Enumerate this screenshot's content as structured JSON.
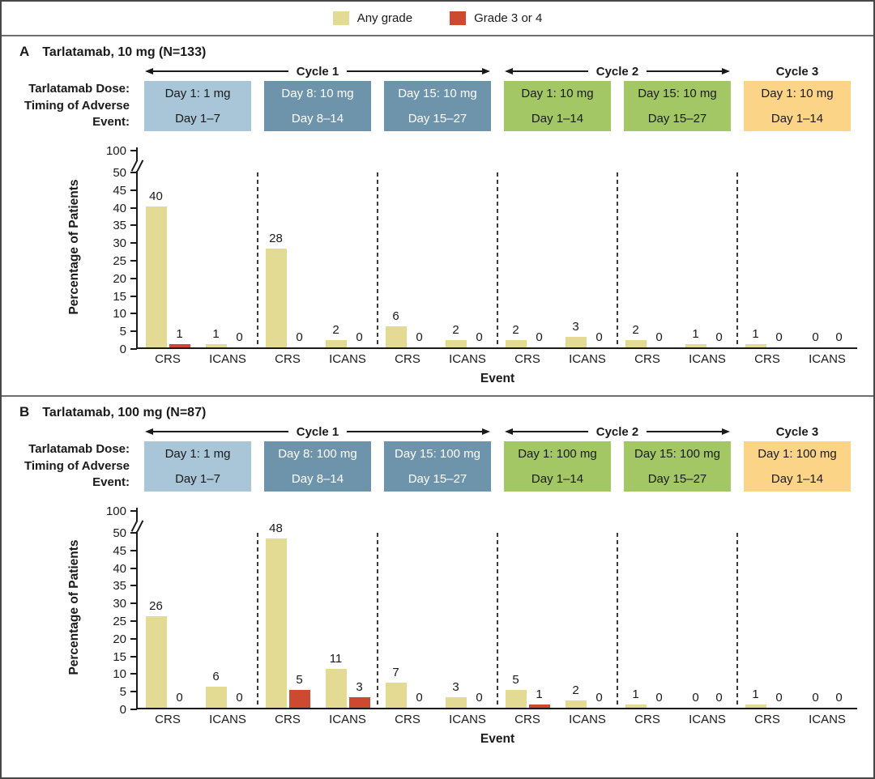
{
  "legend": {
    "any_grade": "Any grade",
    "grade_3_4": "Grade 3 or 4"
  },
  "colors": {
    "any_grade": "#e3db94",
    "grade_3_4": "#cd4a31",
    "lightblue": "#a9c6d8",
    "darkblue": "#6e94ab",
    "green": "#a4c765",
    "orange": "#fbd487",
    "axis": "#1a1a1a"
  },
  "header_labels": {
    "line1": "Tarlatamab Dose:",
    "line2": "Timing of Adverse",
    "line3": "Event:"
  },
  "axis": {
    "ylabel": "Percentage of Patients",
    "xlabel": "Event",
    "yticks": [
      0,
      5,
      10,
      15,
      20,
      25,
      30,
      35,
      40,
      45,
      50
    ],
    "ybreak_top_label": 100,
    "event_labels": [
      "CRS",
      "ICANS"
    ]
  },
  "chart_data": [
    {
      "type": "bar",
      "panel_letter": "A",
      "title": "Tarlatamab, 10 mg (N=133)",
      "ylabel": "Percentage of Patients",
      "xlabel": "Event",
      "ylim": [
        0,
        50
      ],
      "ybreak_to": 100,
      "legend_position": "top",
      "series_names": [
        "Any grade",
        "Grade 3 or 4"
      ],
      "cycles": [
        {
          "label": "Cycle 1",
          "span": 3,
          "arrows": true
        },
        {
          "label": "Cycle 2",
          "span": 2,
          "arrows": true
        },
        {
          "label": "Cycle 3",
          "span": 1,
          "arrows": false
        }
      ],
      "periods": [
        {
          "dose": "Day 1: 1 mg",
          "timing": "Day 1–7",
          "box_color": "lightblue",
          "events": [
            {
              "label": "CRS",
              "any_grade": 40,
              "grade_3_or_4": 1
            },
            {
              "label": "ICANS",
              "any_grade": 1,
              "grade_3_or_4": 0
            }
          ]
        },
        {
          "dose": "Day 8: 10 mg",
          "timing": "Day 8–14",
          "box_color": "darkblue",
          "events": [
            {
              "label": "CRS",
              "any_grade": 28,
              "grade_3_or_4": 0
            },
            {
              "label": "ICANS",
              "any_grade": 2,
              "grade_3_or_4": 0
            }
          ]
        },
        {
          "dose": "Day 15: 10 mg",
          "timing": "Day 15–27",
          "box_color": "darkblue",
          "events": [
            {
              "label": "CRS",
              "any_grade": 6,
              "grade_3_or_4": 0
            },
            {
              "label": "ICANS",
              "any_grade": 2,
              "grade_3_or_4": 0
            }
          ]
        },
        {
          "dose": "Day 1: 10 mg",
          "timing": "Day 1–14",
          "box_color": "green",
          "events": [
            {
              "label": "CRS",
              "any_grade": 2,
              "grade_3_or_4": 0
            },
            {
              "label": "ICANS",
              "any_grade": 3,
              "grade_3_or_4": 0
            }
          ]
        },
        {
          "dose": "Day 15: 10 mg",
          "timing": "Day 15–27",
          "box_color": "green",
          "events": [
            {
              "label": "CRS",
              "any_grade": 2,
              "grade_3_or_4": 0
            },
            {
              "label": "ICANS",
              "any_grade": 1,
              "grade_3_or_4": 0
            }
          ]
        },
        {
          "dose": "Day 1: 10 mg",
          "timing": "Day 1–14",
          "box_color": "orange",
          "events": [
            {
              "label": "CRS",
              "any_grade": 1,
              "grade_3_or_4": 0
            },
            {
              "label": "ICANS",
              "any_grade": 0,
              "grade_3_or_4": 0
            }
          ]
        }
      ]
    },
    {
      "type": "bar",
      "panel_letter": "B",
      "title": "Tarlatamab, 100 mg (N=87)",
      "ylabel": "Percentage of Patients",
      "xlabel": "Event",
      "ylim": [
        0,
        50
      ],
      "ybreak_to": 100,
      "legend_position": "top",
      "series_names": [
        "Any grade",
        "Grade 3 or 4"
      ],
      "cycles": [
        {
          "label": "Cycle 1",
          "span": 3,
          "arrows": true
        },
        {
          "label": "Cycle 2",
          "span": 2,
          "arrows": true
        },
        {
          "label": "Cycle 3",
          "span": 1,
          "arrows": false
        }
      ],
      "periods": [
        {
          "dose": "Day 1: 1 mg",
          "timing": "Day 1–7",
          "box_color": "lightblue",
          "events": [
            {
              "label": "CRS",
              "any_grade": 26,
              "grade_3_or_4": 0
            },
            {
              "label": "ICANS",
              "any_grade": 6,
              "grade_3_or_4": 0
            }
          ]
        },
        {
          "dose": "Day 8: 100 mg",
          "timing": "Day 8–14",
          "box_color": "darkblue",
          "events": [
            {
              "label": "CRS",
              "any_grade": 48,
              "grade_3_or_4": 5
            },
            {
              "label": "ICANS",
              "any_grade": 11,
              "grade_3_or_4": 3
            }
          ]
        },
        {
          "dose": "Day 15: 100 mg",
          "timing": "Day 15–27",
          "box_color": "darkblue",
          "events": [
            {
              "label": "CRS",
              "any_grade": 7,
              "grade_3_or_4": 0
            },
            {
              "label": "ICANS",
              "any_grade": 3,
              "grade_3_or_4": 0
            }
          ]
        },
        {
          "dose": "Day 1: 100 mg",
          "timing": "Day 1–14",
          "box_color": "green",
          "events": [
            {
              "label": "CRS",
              "any_grade": 5,
              "grade_3_or_4": 1
            },
            {
              "label": "ICANS",
              "any_grade": 2,
              "grade_3_or_4": 0
            }
          ]
        },
        {
          "dose": "Day 15: 100 mg",
          "timing": "Day 15–27",
          "box_color": "green",
          "events": [
            {
              "label": "CRS",
              "any_grade": 1,
              "grade_3_or_4": 0
            },
            {
              "label": "ICANS",
              "any_grade": 0,
              "grade_3_or_4": 0
            }
          ]
        },
        {
          "dose": "Day 1: 100 mg",
          "timing": "Day 1–14",
          "box_color": "orange",
          "events": [
            {
              "label": "CRS",
              "any_grade": 1,
              "grade_3_or_4": 0
            },
            {
              "label": "ICANS",
              "any_grade": 0,
              "grade_3_or_4": 0
            }
          ]
        }
      ]
    }
  ]
}
